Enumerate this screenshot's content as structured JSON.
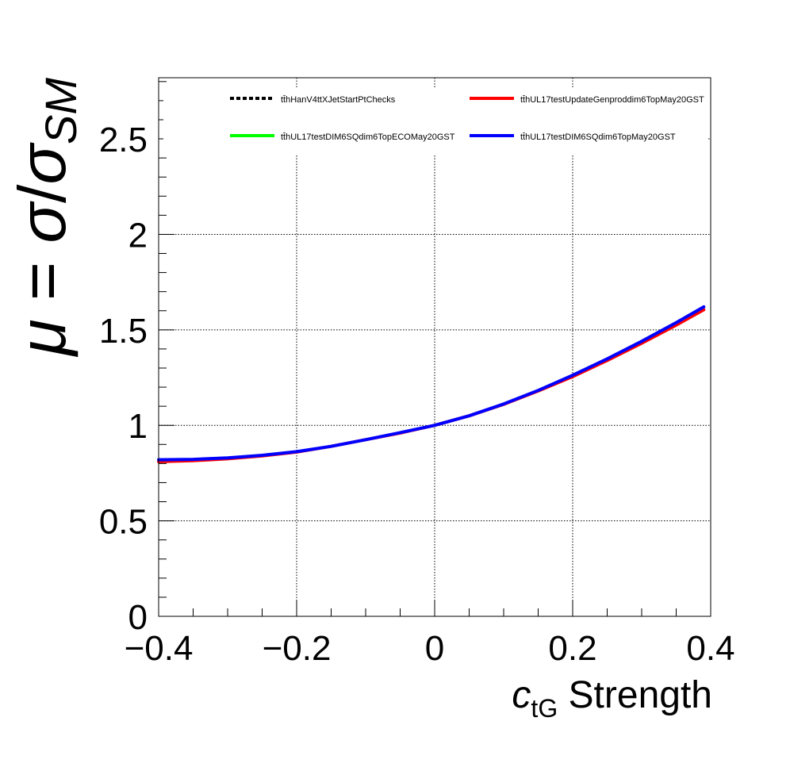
{
  "chart_data": {
    "type": "line",
    "title": "",
    "xlabel": {
      "symbol": "c",
      "subscript": "tG",
      "suffix": " Strength"
    },
    "ylabel": {
      "mu": "μ",
      "eq": " = ",
      "sigma": "σ",
      "slash": "/",
      "sigma2": "σ",
      "subscript": "SM"
    },
    "xlim": [
      -0.4,
      0.4
    ],
    "ylim": [
      0,
      2.82
    ],
    "x_ticks": [
      -0.4,
      -0.2,
      0,
      0.2,
      0.4
    ],
    "x_tick_labels": [
      "−0.4",
      "−0.2",
      "0",
      "0.2",
      "0.4"
    ],
    "y_ticks": [
      0,
      0.5,
      1,
      1.5,
      2,
      2.5
    ],
    "y_tick_labels": [
      "0",
      "0.5",
      "1",
      "1.5",
      "2",
      "2.5"
    ],
    "grid": true,
    "legend": "top",
    "series": [
      {
        "name": "tt̄hHanV4ttXJetStartPtChecks",
        "color": "#000000",
        "style": "dashed",
        "x": [],
        "y": []
      },
      {
        "name": "tt̄hUL17testUpdateGenproddim6TopMay20GST",
        "color": "#ff0000",
        "style": "solid",
        "x": [
          -0.4,
          -0.35,
          -0.3,
          -0.25,
          -0.2,
          -0.15,
          -0.1,
          -0.05,
          0,
          0.05,
          0.1,
          0.15,
          0.2,
          0.25,
          0.3,
          0.35,
          0.39
        ],
        "y": [
          0.81,
          0.815,
          0.825,
          0.84,
          0.86,
          0.89,
          0.925,
          0.96,
          1.0,
          1.05,
          1.11,
          1.18,
          1.255,
          1.34,
          1.43,
          1.525,
          1.605
        ]
      },
      {
        "name": "tt̄hUL17testDIM6SQdim6TopECOMay20GST",
        "color": "#00ff00",
        "style": "solid",
        "x": [],
        "y": []
      },
      {
        "name": "tt̄hUL17testDIM6SQdim6TopMay20GST",
        "color": "#0000ff",
        "style": "solid",
        "x": [
          -0.4,
          -0.35,
          -0.3,
          -0.25,
          -0.2,
          -0.15,
          -0.1,
          -0.05,
          0,
          0.05,
          0.1,
          0.15,
          0.2,
          0.25,
          0.3,
          0.35,
          0.39
        ],
        "y": [
          0.82,
          0.822,
          0.83,
          0.843,
          0.862,
          0.89,
          0.925,
          0.962,
          1.0,
          1.05,
          1.112,
          1.183,
          1.262,
          1.348,
          1.44,
          1.538,
          1.62
        ]
      }
    ]
  }
}
